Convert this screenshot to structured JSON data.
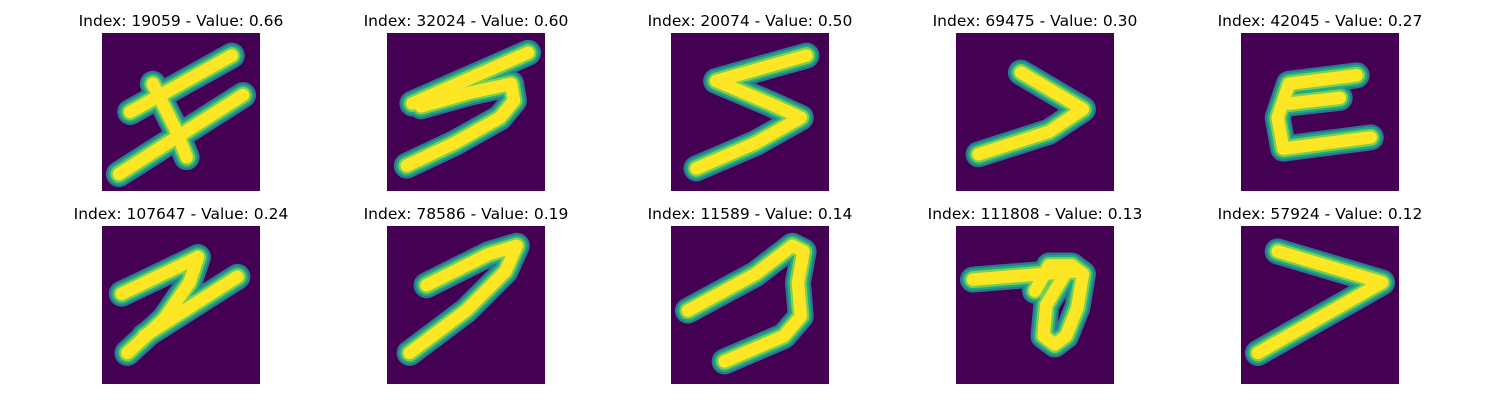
{
  "colors": {
    "background": "#440154",
    "edge_low": "#2a788e",
    "edge_mid": "#22a884",
    "edge_high": "#7ad151",
    "stroke_core": "#fde725"
  },
  "panels": [
    {
      "title": "Index: 19059 - Value: 0.66"
    },
    {
      "title": "Index: 32024 - Value: 0.60"
    },
    {
      "title": "Index: 20074 - Value: 0.50"
    },
    {
      "title": "Index: 69475 - Value: 0.30"
    },
    {
      "title": "Index: 42045 - Value: 0.27"
    },
    {
      "title": "Index: 107647 - Value: 0.24"
    },
    {
      "title": "Index: 78586 - Value: 0.19"
    },
    {
      "title": "Index: 11589 - Value: 0.14"
    },
    {
      "title": "Index: 111808 - Value: 0.13"
    },
    {
      "title": "Index: 57924 - Value: 0.12"
    }
  ]
}
